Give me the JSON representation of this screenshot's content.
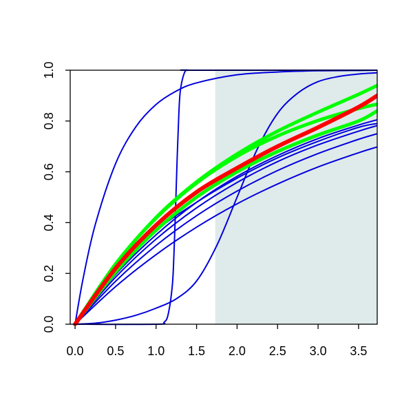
{
  "chart_data": {
    "type": "line",
    "title": "",
    "xlabel": "",
    "ylabel": "",
    "xlim": [
      -0.06,
      3.73
    ],
    "ylim": [
      0,
      1
    ],
    "x_ticks": [
      "0.0",
      "0.5",
      "1.0",
      "1.5",
      "2.0",
      "2.5",
      "3.0",
      "3.5"
    ],
    "y_ticks": [
      "0.0",
      "0.2",
      "0.4",
      "0.6",
      "0.8",
      "1.0"
    ],
    "grid": false,
    "legend": "none",
    "shaded_region": {
      "x_from": 1.73,
      "x_to": 3.73,
      "color": "#dfeaea"
    },
    "colors": {
      "blue": "#0000dd",
      "red": "#ff0000",
      "green": "#00ff00"
    },
    "series": [
      {
        "color": "#0000dd",
        "width": 2,
        "x": [
          0,
          0.1,
          0.25,
          0.5,
          0.75,
          1.0,
          1.25,
          1.5,
          2.0,
          2.5,
          3.0,
          3.5,
          3.73
        ],
        "y": [
          0,
          0.181,
          0.393,
          0.632,
          0.777,
          0.865,
          0.918,
          0.95,
          0.982,
          0.993,
          0.998,
          0.999,
          1.0
        ]
      },
      {
        "color": "#0000dd",
        "width": 2,
        "x": [
          0,
          1.0,
          1.1,
          1.15,
          1.2,
          1.22,
          1.24,
          1.26,
          1.28,
          1.3,
          1.35,
          1.4,
          1.5,
          3.73
        ],
        "y": [
          0,
          0,
          0.008,
          0.04,
          0.15,
          0.27,
          0.45,
          0.65,
          0.82,
          0.92,
          0.99,
          1.0,
          1.0,
          1.0
        ]
      },
      {
        "color": "#0000dd",
        "width": 2,
        "x": [
          0,
          0.25,
          0.5,
          0.75,
          1.0,
          1.25,
          1.5,
          1.75,
          2.0,
          2.25,
          2.5,
          2.75,
          3.0,
          3.25,
          3.5,
          3.73
        ],
        "y": [
          0,
          0.004,
          0.016,
          0.035,
          0.063,
          0.1,
          0.17,
          0.31,
          0.5,
          0.69,
          0.83,
          0.91,
          0.955,
          0.975,
          0.985,
          0.99
        ]
      },
      {
        "color": "#0000dd",
        "width": 2,
        "x": [
          0,
          0.5,
          1.0,
          1.5,
          2.0,
          2.5,
          3.0,
          3.5,
          3.73
        ],
        "y": [
          0,
          0.185,
          0.335,
          0.458,
          0.558,
          0.64,
          0.706,
          0.76,
          0.782
        ]
      },
      {
        "color": "#0000dd",
        "width": 2,
        "x": [
          0,
          0.5,
          1.0,
          1.5,
          2.0,
          2.5,
          3.0,
          3.5,
          3.73
        ],
        "y": [
          0,
          0.169,
          0.31,
          0.427,
          0.524,
          0.605,
          0.672,
          0.728,
          0.75
        ]
      },
      {
        "color": "#0000dd",
        "width": 2,
        "x": [
          0,
          0.5,
          1.0,
          1.5,
          2.0,
          2.5,
          3.0,
          3.5,
          3.73
        ],
        "y": [
          0,
          0.148,
          0.274,
          0.382,
          0.474,
          0.552,
          0.619,
          0.675,
          0.698
        ]
      },
      {
        "color": "#0000dd",
        "width": 2,
        "x": [
          0,
          0.5,
          1.0,
          1.5,
          2.0,
          2.5,
          3.0,
          3.5,
          3.73
        ],
        "y": [
          0,
          0.196,
          0.352,
          0.48,
          0.582,
          0.664,
          0.731,
          0.784,
          0.805
        ]
      },
      {
        "color": "#0000dd",
        "width": 2,
        "x": [
          0,
          0.5,
          1.0,
          1.5,
          2.0,
          2.5,
          3.0,
          3.5,
          3.73
        ],
        "y": [
          0,
          0.21,
          0.368,
          0.48,
          0.575,
          0.655,
          0.72,
          0.775,
          0.79
        ]
      },
      {
        "color": "#00ff00",
        "width": 5,
        "x": [
          0,
          0.5,
          1.0,
          1.5,
          2.0,
          2.5,
          3.0,
          3.5,
          3.73
        ],
        "y": [
          0,
          0.237,
          0.418,
          0.556,
          0.661,
          0.741,
          0.802,
          0.849,
          0.866
        ]
      },
      {
        "color": "#00ff00",
        "width": 5,
        "x": [
          0,
          0.5,
          1.0,
          1.5,
          2.0,
          2.5,
          3.0,
          3.5,
          3.73
        ],
        "y": [
          0,
          0.205,
          0.37,
          0.5,
          0.6,
          0.68,
          0.745,
          0.8,
          0.84
        ]
      },
      {
        "color": "#00ff00",
        "width": 5,
        "x": [
          0,
          0.5,
          1.0,
          1.5,
          2.0,
          2.5,
          3.0,
          3.5,
          3.73
        ],
        "y": [
          0,
          0.235,
          0.42,
          0.56,
          0.67,
          0.76,
          0.835,
          0.905,
          0.94
        ]
      },
      {
        "color": "#ff0000",
        "width": 6,
        "x": [
          0,
          0.5,
          1.0,
          1.5,
          2.0,
          2.5,
          3.0,
          3.5,
          3.73
        ],
        "y": [
          0,
          0.22,
          0.39,
          0.52,
          0.615,
          0.7,
          0.775,
          0.855,
          0.9
        ]
      }
    ]
  }
}
